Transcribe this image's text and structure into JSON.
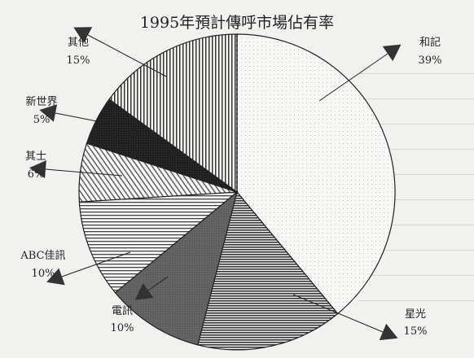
{
  "chart_data": {
    "type": "pie",
    "title": "1995年預計傳呼市場佔有率",
    "slices": [
      {
        "label": "和記",
        "value": 39,
        "value_label": "39%",
        "pattern": "dots"
      },
      {
        "label": "星光",
        "value": 15,
        "value_label": "15%",
        "pattern": "hlines-dense"
      },
      {
        "label": "電訊",
        "value": 10,
        "value_label": "10%",
        "pattern": "gray"
      },
      {
        "label": "ABC佳訊",
        "value": 10,
        "value_label": "10%",
        "pattern": "hlines"
      },
      {
        "label": "其士",
        "value": 6,
        "value_label": "6%",
        "pattern": "diag"
      },
      {
        "label": "新世界",
        "value": 5,
        "value_label": "5%",
        "pattern": "dark"
      },
      {
        "label": "其他",
        "value": 15,
        "value_label": "15%",
        "pattern": "vlines"
      }
    ],
    "start": "top",
    "direction": "clockwise",
    "legend": "none"
  }
}
